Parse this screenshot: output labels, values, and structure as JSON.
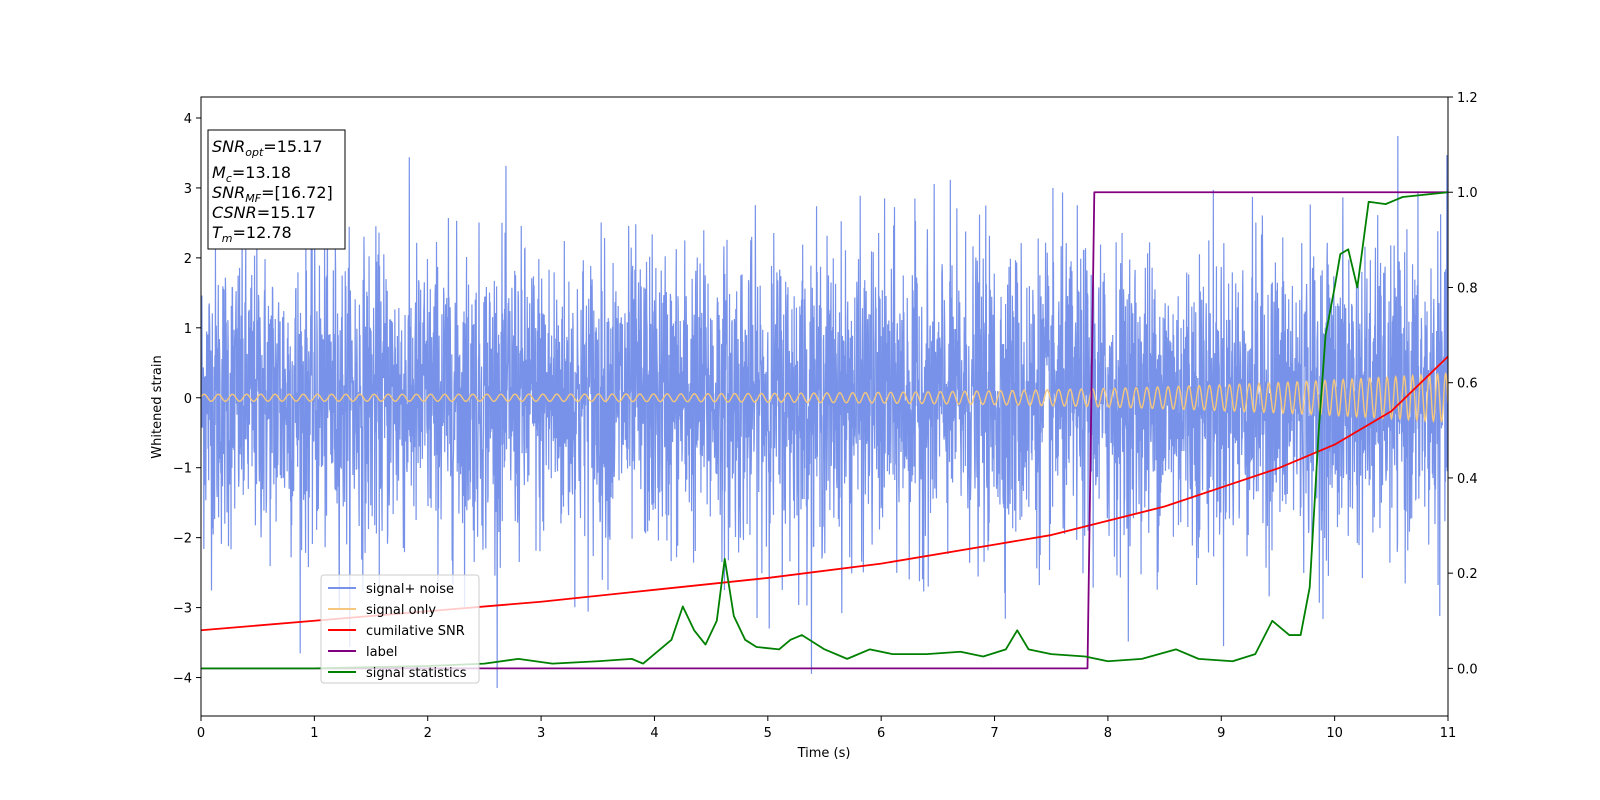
{
  "chart_data": {
    "type": "line",
    "xlabel": "Time (s)",
    "ylabel": "Whitened strain",
    "xlim": [
      0,
      11
    ],
    "ylim_left": [
      -4.55,
      4.3
    ],
    "ylim_right": [
      -0.1,
      1.2
    ],
    "x_ticks": [
      "0",
      "1",
      "2",
      "3",
      "4",
      "5",
      "6",
      "7",
      "8",
      "9",
      "10",
      "11"
    ],
    "y_ticks_left": [
      "−4",
      "−3",
      "−2",
      "−1",
      "0",
      "1",
      "2",
      "3",
      "4"
    ],
    "y_ticks_right": [
      "0.0",
      "0.2",
      "0.4",
      "0.6",
      "0.8",
      "1.0",
      "1.2"
    ],
    "info_box": {
      "snr_opt": "15.17",
      "mc": "13.18",
      "snr_mf": "[16.72]",
      "csnr": "15.17",
      "tm": "12.78"
    },
    "legend": [
      "signal+ noise",
      "signal only",
      "cumilative SNR",
      "label",
      "signal statistics"
    ],
    "series": [
      {
        "name": "signal+ noise",
        "axis": "left",
        "color": "#7792e8",
        "description_values": "gaussian noise band, mostly within -2.7 to 2.7, spikes to about ±3.9"
      },
      {
        "name": "signal only",
        "axis": "left",
        "color": "#f5c77e",
        "amplitude_start": 0.05,
        "amplitude_end": 0.35
      },
      {
        "name": "cumilative SNR",
        "axis": "right",
        "color": "#ff0000",
        "x": [
          0,
          1,
          2,
          3,
          4,
          5,
          6,
          7,
          7.5,
          8,
          8.5,
          9,
          9.5,
          10,
          10.5,
          11
        ],
        "values": [
          0.08,
          0.1,
          0.12,
          0.14,
          0.165,
          0.19,
          0.22,
          0.26,
          0.28,
          0.31,
          0.34,
          0.38,
          0.42,
          0.47,
          0.54,
          0.655
        ]
      },
      {
        "name": "label",
        "axis": "right",
        "color": "#800080",
        "x": [
          0,
          7.82,
          7.88,
          11
        ],
        "values": [
          0,
          0,
          1,
          1
        ]
      },
      {
        "name": "signal statistics",
        "axis": "right",
        "color": "#008000",
        "x": [
          0,
          1,
          2,
          2.5,
          2.8,
          3.1,
          3.5,
          3.8,
          3.9,
          4.15,
          4.25,
          4.35,
          4.45,
          4.55,
          4.62,
          4.7,
          4.8,
          4.9,
          5.1,
          5.2,
          5.3,
          5.5,
          5.7,
          5.9,
          6.1,
          6.4,
          6.7,
          6.9,
          7.1,
          7.2,
          7.3,
          7.5,
          7.8,
          8.0,
          8.3,
          8.6,
          8.8,
          9.1,
          9.3,
          9.45,
          9.6,
          9.7,
          9.78,
          9.86,
          9.92,
          10.0,
          10.05,
          10.12,
          10.2,
          10.3,
          10.45,
          10.6,
          10.8,
          11.0
        ],
        "values": [
          0.0,
          0.0,
          0.005,
          0.01,
          0.02,
          0.01,
          0.015,
          0.02,
          0.01,
          0.06,
          0.13,
          0.08,
          0.05,
          0.1,
          0.23,
          0.11,
          0.06,
          0.045,
          0.04,
          0.06,
          0.07,
          0.04,
          0.02,
          0.04,
          0.03,
          0.03,
          0.035,
          0.025,
          0.04,
          0.08,
          0.04,
          0.03,
          0.025,
          0.015,
          0.02,
          0.04,
          0.02,
          0.015,
          0.03,
          0.1,
          0.07,
          0.07,
          0.17,
          0.5,
          0.7,
          0.8,
          0.87,
          0.88,
          0.8,
          0.98,
          0.975,
          0.99,
          0.995,
          1.0
        ]
      }
    ]
  }
}
